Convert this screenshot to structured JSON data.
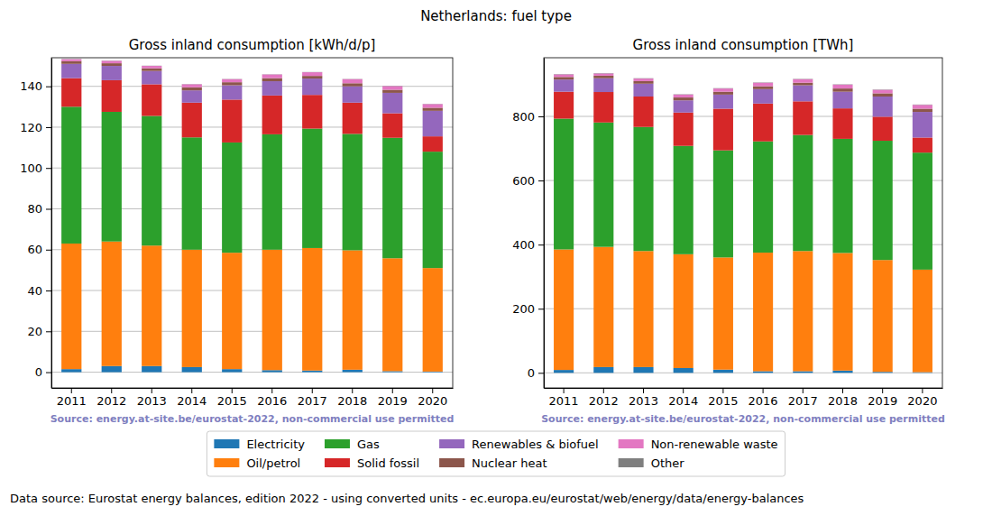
{
  "title": "Netherlands: fuel type",
  "note": "Data source: Eurostat energy balances, edition 2022 - using converted units - ec.europa.eu/eurostat/web/energy/data/energy-balances",
  "chart_data": [
    {
      "type": "bar",
      "stacked": true,
      "grid": true,
      "legend": "bottom",
      "title": "Gross inland consumption [kWh/d/p]",
      "annotations": [
        "Source: energy.at-site.be/eurostat-2022, non-commercial use permitted"
      ],
      "categories": [
        "2011",
        "2012",
        "2013",
        "2014",
        "2015",
        "2016",
        "2017",
        "2018",
        "2019",
        "2020"
      ],
      "ylim": [
        -7.7,
        154
      ],
      "yticks": [
        0,
        20,
        40,
        60,
        80,
        100,
        120,
        140
      ],
      "series": [
        {
          "name": "Electricity",
          "color": "#1f77b4",
          "values": [
            1.5,
            3,
            3,
            2.5,
            1.5,
            1,
            0.8,
            1.2,
            0.5,
            0.3
          ]
        },
        {
          "name": "Oil/petrol",
          "color": "#ff7f0e",
          "values": [
            61.5,
            61,
            59,
            57.5,
            57,
            59,
            60,
            58.5,
            55.3,
            50.7
          ]
        },
        {
          "name": "Gas",
          "color": "#2ca02c",
          "values": [
            67,
            63.5,
            63.5,
            55,
            54,
            56.5,
            58.5,
            57,
            59,
            57
          ]
        },
        {
          "name": "Solid fossil",
          "color": "#d62728",
          "values": [
            14,
            15.5,
            15.5,
            17,
            21,
            19,
            16.5,
            15.3,
            12,
            7.5
          ]
        },
        {
          "name": "Renewables & biofuel",
          "color": "#9467bd",
          "values": [
            7,
            7,
            6.5,
            6,
            7,
            7,
            8,
            8,
            10,
            12.5
          ]
        },
        {
          "name": "Nuclear heat",
          "color": "#8c564b",
          "values": [
            1.3,
            1.3,
            1.3,
            1.5,
            1.5,
            1.5,
            1.3,
            1.5,
            1.5,
            1.5
          ]
        },
        {
          "name": "Non-renewable waste",
          "color": "#e377c2",
          "values": [
            1,
            1.2,
            1.2,
            1.5,
            1.5,
            1.8,
            1.8,
            2,
            1.8,
            1.8
          ]
        },
        {
          "name": "Other",
          "color": "#7f7f7f",
          "values": [
            0.1,
            0.1,
            0.1,
            0.1,
            0.1,
            0.1,
            0.1,
            0.1,
            0.1,
            0.1
          ]
        }
      ]
    },
    {
      "type": "bar",
      "stacked": true,
      "grid": true,
      "title": "Gross inland consumption [TWh]",
      "annotations": [
        "Source: energy.at-site.be/eurostat-2022, non-commercial use permitted"
      ],
      "categories": [
        "2011",
        "2012",
        "2013",
        "2014",
        "2015",
        "2016",
        "2017",
        "2018",
        "2019",
        "2020"
      ],
      "ylim": [
        -47,
        983
      ],
      "yticks": [
        0,
        200,
        400,
        600,
        800
      ],
      "series": [
        {
          "name": "Electricity",
          "color": "#1f77b4",
          "values": [
            9,
            18,
            18,
            15,
            10,
            5,
            5,
            7,
            3,
            2
          ]
        },
        {
          "name": "Oil/petrol",
          "color": "#ff7f0e",
          "values": [
            376,
            375,
            362,
            355,
            350,
            370,
            375,
            367,
            349,
            320
          ]
        },
        {
          "name": "Gas",
          "color": "#2ca02c",
          "values": [
            408,
            388,
            387,
            338,
            334,
            347,
            362,
            356,
            372,
            365
          ]
        },
        {
          "name": "Solid fossil",
          "color": "#d62728",
          "values": [
            84,
            95,
            95,
            104,
            130,
            118,
            105,
            95,
            75,
            47
          ]
        },
        {
          "name": "Renewables & biofuel",
          "color": "#9467bd",
          "values": [
            38,
            43,
            40,
            38,
            44,
            45,
            50,
            52,
            63,
            80
          ]
        },
        {
          "name": "Nuclear heat",
          "color": "#8c564b",
          "values": [
            8,
            8,
            8,
            9,
            9,
            9,
            8,
            10,
            10,
            10
          ]
        },
        {
          "name": "Non-renewable waste",
          "color": "#e377c2",
          "values": [
            8,
            7,
            8,
            9,
            10,
            11,
            11,
            12,
            11,
            12
          ]
        },
        {
          "name": "Other",
          "color": "#7f7f7f",
          "values": [
            1,
            1,
            1,
            1,
            1,
            1,
            1,
            1,
            1,
            1
          ]
        }
      ]
    }
  ]
}
